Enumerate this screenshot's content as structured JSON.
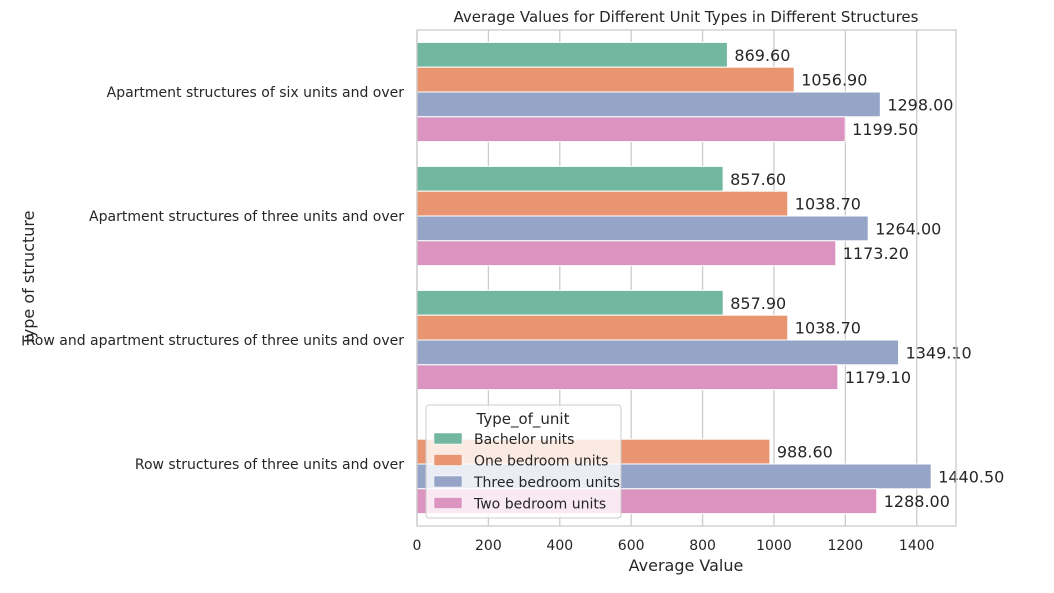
{
  "chart_data": {
    "type": "bar",
    "orientation": "horizontal",
    "title": "Average Values for Different Unit Types in Different Structures",
    "xlabel": "Average Value",
    "ylabel": "Type of structure",
    "xlim": [
      0,
      1510
    ],
    "xticks": [
      0,
      200,
      400,
      600,
      800,
      1000,
      1200,
      1400
    ],
    "grid": true,
    "legend_position": "lower-left",
    "legend_title": "Type_of_unit",
    "categories": [
      "Apartment structures of six units and over",
      "Apartment structures of three units and over",
      "Row and apartment structures of three units and over",
      "Row structures of three units and over"
    ],
    "series": [
      {
        "name": "Bachelor units",
        "color": "#72b8a0",
        "values": [
          869.6,
          857.6,
          857.9,
          null
        ],
        "labels": [
          "869.60",
          "857.60",
          "857.90",
          ""
        ]
      },
      {
        "name": "One bedroom units",
        "color": "#e99571",
        "values": [
          1056.9,
          1038.7,
          1038.7,
          988.6
        ],
        "labels": [
          "1056.90",
          "1038.70",
          "1038.70",
          "988.60"
        ]
      },
      {
        "name": "Three bedroom units",
        "color": "#96a5c7",
        "values": [
          1298.0,
          1264.0,
          1349.1,
          1440.5
        ],
        "labels": [
          "1298.00",
          "1264.00",
          "1349.10",
          "1440.50"
        ]
      },
      {
        "name": "Two bedroom units",
        "color": "#db93c0",
        "values": [
          1199.5,
          1173.2,
          1179.1,
          1288.0
        ],
        "labels": [
          "1199.50",
          "1173.20",
          "1179.10",
          "1288.00"
        ]
      }
    ]
  }
}
